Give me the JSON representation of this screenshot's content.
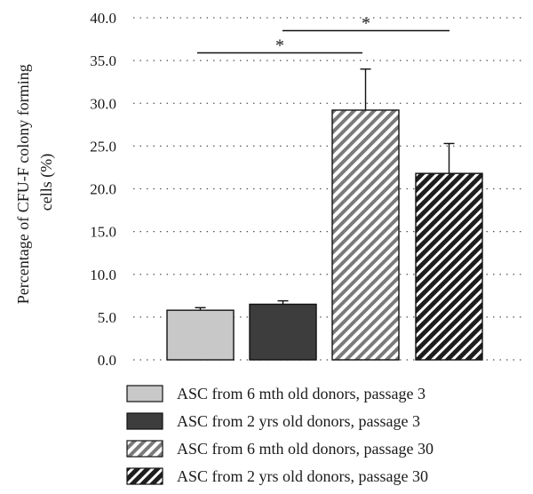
{
  "chart_data": {
    "type": "bar",
    "ylabel_line1": "Percentage of CFU-F colony forming",
    "ylabel_line2": "cells (%)",
    "ylim": [
      0,
      40
    ],
    "yticks": [
      "0.0",
      "5.0",
      "10.0",
      "15.0",
      "20.0",
      "25.0",
      "30.0",
      "35.0",
      "40.0"
    ],
    "grid": "dotted horizontal",
    "legend_position": "bottom",
    "series": [
      {
        "name": "ASC from 6 mth old donors, passage 3",
        "value": 5.8,
        "error": 0.3,
        "fill": "#c8c8c8",
        "pattern": "solid"
      },
      {
        "name": "ASC from 2 yrs old donors, passage 3",
        "value": 6.5,
        "error": 0.4,
        "fill": "#3d3d3d",
        "pattern": "solid"
      },
      {
        "name": "ASC from 6 mth old donors, passage 30",
        "value": 29.2,
        "error": 4.8,
        "fill": "#7a7a7a",
        "pattern": "diagonal-light"
      },
      {
        "name": "ASC from 2 yrs old donors, passage 30",
        "value": 21.8,
        "error": 3.5,
        "fill": "#1e1e1e",
        "pattern": "diagonal-dark"
      }
    ],
    "significance": [
      {
        "from_bar": 0,
        "to_bar": 2,
        "level_value": 35.9,
        "label": "*"
      },
      {
        "from_bar": 1,
        "to_bar": 3,
        "level_value": 38.5,
        "label": "*"
      }
    ]
  }
}
